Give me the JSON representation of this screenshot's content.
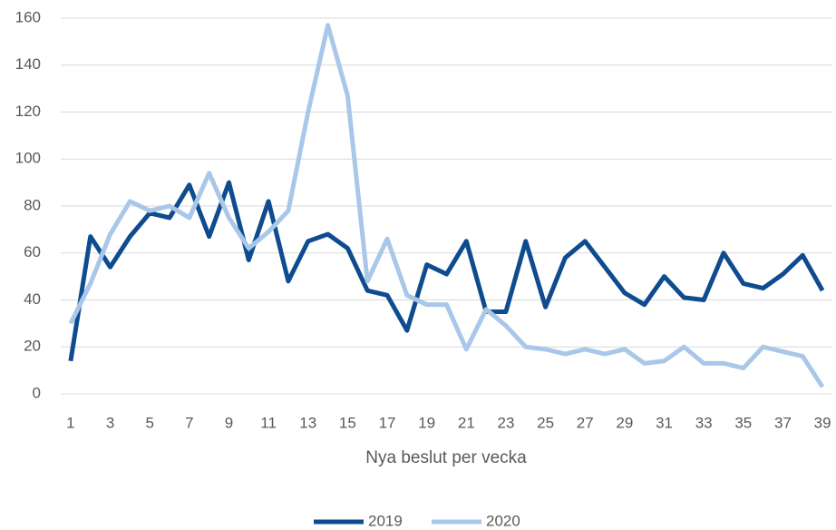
{
  "chart_data": {
    "type": "line",
    "xlabel": "Nya beslut per vecka",
    "categories": [
      "1",
      null,
      "3",
      null,
      "5",
      null,
      "7",
      null,
      "9",
      null,
      "11",
      null,
      "13",
      null,
      "15",
      null,
      "17",
      null,
      "19",
      null,
      "21",
      null,
      "23",
      null,
      "25",
      null,
      "27",
      null,
      "29",
      null,
      "31",
      null,
      "33",
      null,
      "35",
      null,
      "37",
      null,
      "39"
    ],
    "series": [
      {
        "name": "2019",
        "color": "#0f4b8f",
        "values": [
          14,
          67,
          54,
          67,
          77,
          75,
          89,
          67,
          90,
          57,
          82,
          48,
          65,
          68,
          62,
          44,
          42,
          27,
          55,
          51,
          65,
          35,
          35,
          65,
          37,
          58,
          65,
          54,
          43,
          38,
          50,
          41,
          40,
          60,
          47,
          45,
          51,
          59,
          44
        ]
      },
      {
        "name": "2020",
        "color": "#a9c7e8",
        "values": [
          30,
          47,
          68,
          82,
          78,
          80,
          75,
          94,
          75,
          62,
          69,
          78,
          120,
          157,
          127,
          48,
          66,
          42,
          38,
          38,
          19,
          36,
          29,
          20,
          19,
          17,
          19,
          17,
          19,
          13,
          14,
          20,
          13,
          13,
          11,
          20,
          18,
          16,
          3
        ]
      }
    ],
    "ylim": [
      0,
      160
    ],
    "yticks": [
      0,
      20,
      40,
      60,
      80,
      100,
      120,
      140,
      160
    ],
    "grid": true,
    "legend": "bottom"
  }
}
